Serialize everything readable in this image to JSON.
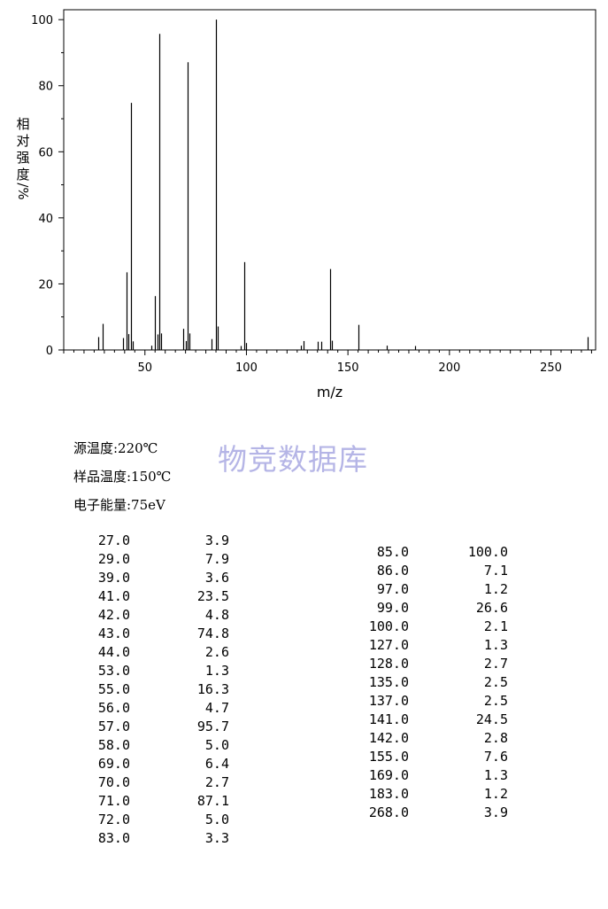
{
  "chart_data": {
    "type": "bar",
    "xlabel": "m/z",
    "ylabel_chars": [
      "相",
      "对",
      "强",
      "度",
      "/%"
    ],
    "xlim": [
      10,
      272
    ],
    "ylim": [
      0,
      103
    ],
    "xticks": [
      50,
      100,
      150,
      200,
      250
    ],
    "yticks": [
      0,
      20,
      40,
      60,
      80,
      100
    ],
    "grid": false,
    "series": [
      {
        "x": [
          27,
          29,
          39,
          41,
          42,
          43,
          44,
          53,
          55,
          56,
          57,
          58,
          69,
          70,
          71,
          72,
          83,
          85,
          86,
          97,
          99,
          100,
          127,
          128,
          135,
          137,
          141,
          142,
          155,
          169,
          183,
          268
        ],
        "values": [
          3.9,
          7.9,
          3.6,
          23.5,
          4.8,
          74.8,
          2.6,
          1.3,
          16.3,
          4.7,
          95.7,
          5.0,
          6.4,
          2.7,
          87.1,
          5.0,
          3.3,
          100.0,
          7.1,
          1.2,
          26.6,
          2.1,
          1.3,
          2.7,
          2.5,
          2.5,
          24.5,
          2.8,
          7.6,
          1.3,
          1.2,
          3.9
        ]
      }
    ]
  },
  "info": {
    "source_temp": "源温度:220℃",
    "sample_temp": "样品温度:150℃",
    "electron_energy": "电子能量:75eV"
  },
  "watermark": "物竞数据库",
  "peak_table": {
    "left": [
      {
        "mz": "27.0",
        "intensity": "3.9"
      },
      {
        "mz": "29.0",
        "intensity": "7.9"
      },
      {
        "mz": "39.0",
        "intensity": "3.6"
      },
      {
        "mz": "41.0",
        "intensity": "23.5"
      },
      {
        "mz": "42.0",
        "intensity": "4.8"
      },
      {
        "mz": "43.0",
        "intensity": "74.8"
      },
      {
        "mz": "44.0",
        "intensity": "2.6"
      },
      {
        "mz": "53.0",
        "intensity": "1.3"
      },
      {
        "mz": "55.0",
        "intensity": "16.3"
      },
      {
        "mz": "56.0",
        "intensity": "4.7"
      },
      {
        "mz": "57.0",
        "intensity": "95.7"
      },
      {
        "mz": "58.0",
        "intensity": "5.0"
      },
      {
        "mz": "69.0",
        "intensity": "6.4"
      },
      {
        "mz": "70.0",
        "intensity": "2.7"
      },
      {
        "mz": "71.0",
        "intensity": "87.1"
      },
      {
        "mz": "72.0",
        "intensity": "5.0"
      },
      {
        "mz": "83.0",
        "intensity": "3.3"
      }
    ],
    "right": [
      {
        "mz": "85.0",
        "intensity": "100.0"
      },
      {
        "mz": "86.0",
        "intensity": "7.1"
      },
      {
        "mz": "97.0",
        "intensity": "1.2"
      },
      {
        "mz": "99.0",
        "intensity": "26.6"
      },
      {
        "mz": "100.0",
        "intensity": "2.1"
      },
      {
        "mz": "127.0",
        "intensity": "1.3"
      },
      {
        "mz": "128.0",
        "intensity": "2.7"
      },
      {
        "mz": "135.0",
        "intensity": "2.5"
      },
      {
        "mz": "137.0",
        "intensity": "2.5"
      },
      {
        "mz": "141.0",
        "intensity": "24.5"
      },
      {
        "mz": "142.0",
        "intensity": "2.8"
      },
      {
        "mz": "155.0",
        "intensity": "7.6"
      },
      {
        "mz": "169.0",
        "intensity": "1.3"
      },
      {
        "mz": "183.0",
        "intensity": "1.2"
      },
      {
        "mz": "268.0",
        "intensity": "3.9"
      }
    ]
  }
}
